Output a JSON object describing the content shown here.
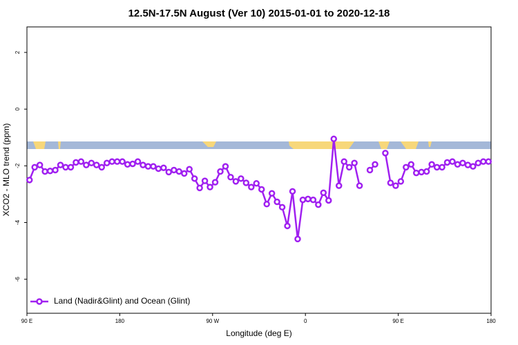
{
  "chart_data": {
    "type": "line",
    "title": "12.5N-17.5N August (Ver 10)   2015-01-01 to 2020-12-18",
    "x_label": "Longitude (deg E)",
    "y_label": "XCO2 - MLO trend (ppm)",
    "xlim": [
      90,
      540
    ],
    "xticks": [
      {
        "value": 90,
        "label": "90 E"
      },
      {
        "value": 180,
        "label": "180"
      },
      {
        "value": 270,
        "label": "90 W"
      },
      {
        "value": 360,
        "label": "0"
      },
      {
        "value": 450,
        "label": "90 E"
      },
      {
        "value": 540,
        "label": "180"
      }
    ],
    "ylim": [
      -7.2,
      2.9
    ],
    "yticks": [
      -6,
      -4,
      -2,
      0,
      2
    ],
    "legend": "bottom-left",
    "x": [
      92.5,
      97.5,
      102.5,
      107.5,
      112.5,
      117.5,
      122.5,
      127.5,
      132.5,
      137.5,
      142.5,
      147.5,
      152.5,
      157.5,
      162.5,
      167.5,
      172.5,
      177.5,
      182.5,
      187.5,
      192.5,
      197.5,
      202.5,
      207.5,
      212.5,
      217.5,
      222.5,
      227.5,
      232.5,
      237.5,
      242.5,
      247.5,
      252.5,
      257.5,
      262.5,
      267.5,
      272.5,
      277.5,
      282.5,
      287.5,
      292.5,
      297.5,
      302.5,
      307.5,
      312.5,
      317.5,
      322.5,
      327.5,
      332.5,
      337.5,
      342.5,
      347.5,
      352.5,
      357.5,
      362.5,
      367.5,
      372.5,
      377.5,
      382.5,
      387.5,
      392.5,
      397.5,
      402.5,
      407.5,
      412.5,
      417.5,
      422.5,
      427.5,
      432.5,
      437.5,
      442.5,
      447.5,
      452.5,
      457.5,
      462.5,
      467.5,
      472.5,
      477.5,
      482.5,
      487.5,
      492.5,
      497.5,
      502.5,
      507.5,
      512.5,
      517.5,
      522.5,
      527.5,
      532.5,
      537.5
    ],
    "series": [
      {
        "name": "Land (Nadir&Glint) and Ocean (Glint)",
        "color": "#a020f0",
        "values": [
          -2.5,
          -2.05,
          -1.97,
          -2.2,
          -2.18,
          -2.15,
          -1.97,
          -2.05,
          -2.05,
          -1.88,
          -1.85,
          -1.97,
          -1.9,
          -1.97,
          -2.05,
          -1.9,
          -1.85,
          -1.85,
          -1.85,
          -1.95,
          -1.93,
          -1.85,
          -1.97,
          -2.02,
          -2.02,
          -2.1,
          -2.07,
          -2.22,
          -2.15,
          -2.2,
          -2.27,
          -2.12,
          -2.45,
          -2.78,
          -2.53,
          -2.75,
          -2.58,
          -2.2,
          -2.02,
          -2.4,
          -2.55,
          -2.45,
          -2.6,
          -2.75,
          -2.62,
          -2.83,
          -3.35,
          -2.97,
          -3.27,
          -3.46,
          -4.12,
          -2.9,
          -4.58,
          -3.2,
          -3.17,
          -3.2,
          -3.37,
          -2.95,
          -3.22,
          -1.05,
          -2.7,
          -1.85,
          -2.05,
          -1.9,
          -2.7,
          null,
          -2.15,
          -1.95,
          null,
          -1.55,
          -2.6,
          -2.7,
          -2.55,
          -2.05,
          -1.95,
          -2.25,
          -2.22,
          -2.2,
          -1.95,
          -2.05,
          -2.05,
          -1.88,
          -1.85,
          -1.95,
          -1.9,
          -1.97,
          -2.02,
          -1.9,
          -1.85,
          -1.85
        ]
      }
    ]
  }
}
